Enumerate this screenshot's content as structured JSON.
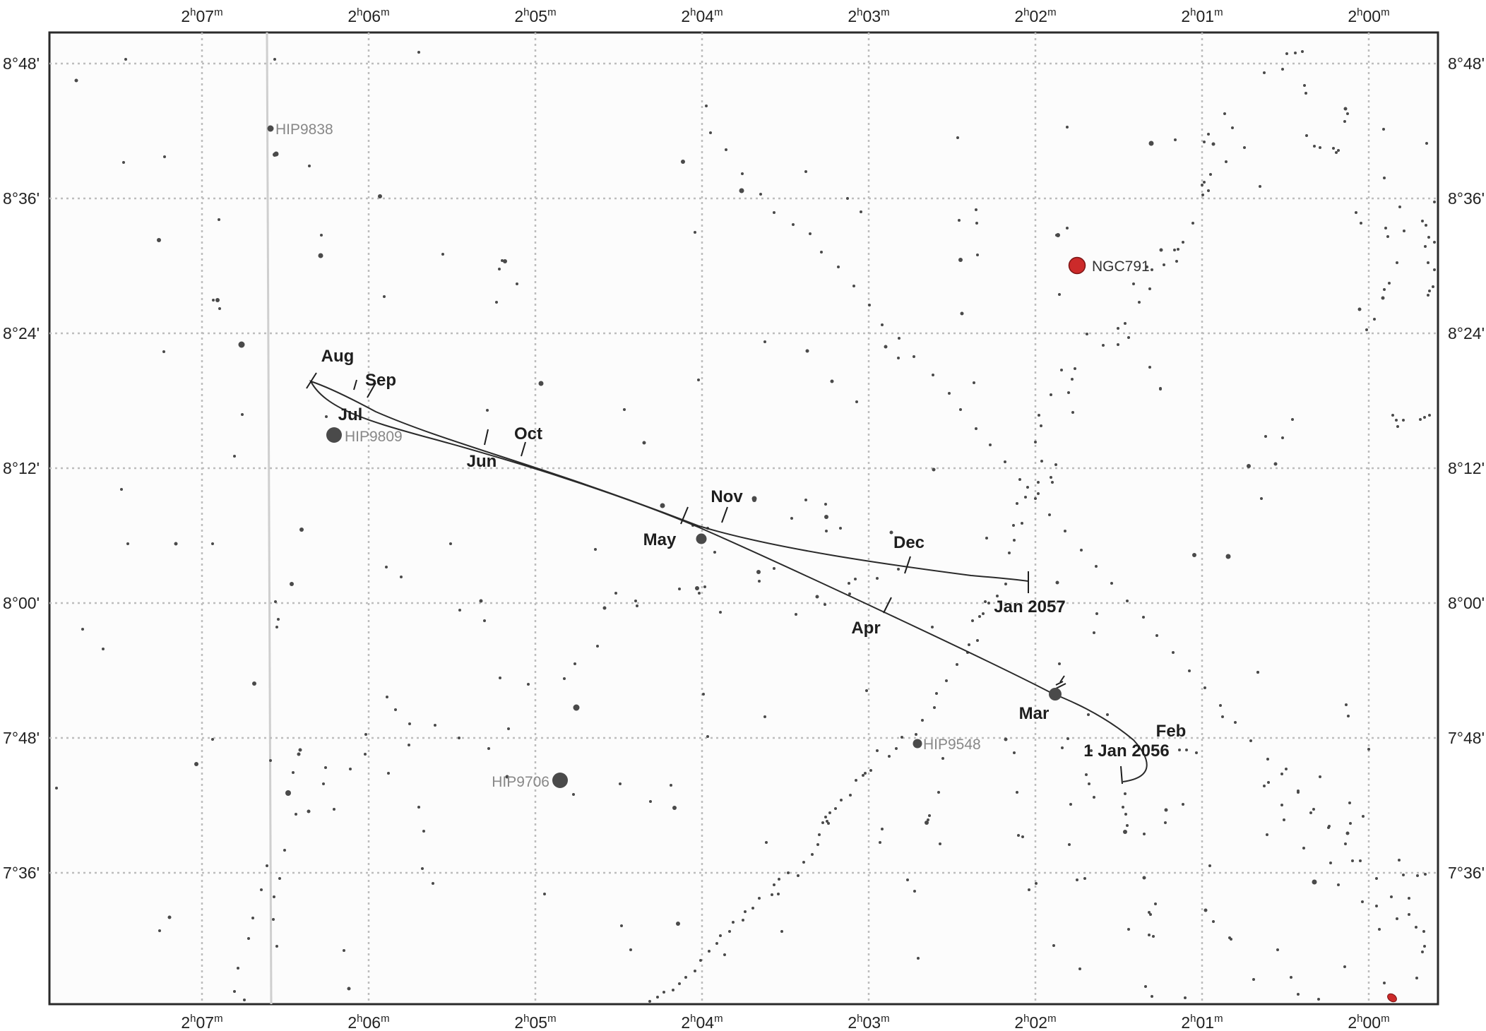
{
  "chart_data": {
    "type": "scatter",
    "ra_ticks": [
      "2h07m",
      "2h06m",
      "2h05m",
      "2h04m",
      "2h03m",
      "2h02m",
      "2h01m",
      "2h00m"
    ],
    "dec_ticks": [
      "8°48'",
      "8°36'",
      "8°24'",
      "8°12'",
      "8°00'",
      "7°48'",
      "7°36'"
    ],
    "path_labels": [
      "1 Jan 2056",
      "Feb",
      "Mar",
      "Apr",
      "May",
      "Jun",
      "Jul",
      "Aug",
      "Sep",
      "Oct",
      "Nov",
      "Dec",
      "Jan 2057"
    ],
    "labeled_objects": [
      {
        "name": "HIP9838",
        "ra": "2h06m22s",
        "dec": "8°43.6'",
        "color": "#888888"
      },
      {
        "name": "HIP9809",
        "ra": "2h06m07s",
        "dec": "8°14.7'",
        "color": "#888888"
      },
      {
        "name": "HIP9706",
        "ra": "2h04m52s",
        "dec": "7°43.7'",
        "color": "#888888"
      },
      {
        "name": "HIP9548",
        "ra": "2h02m42s",
        "dec": "7°47.3'",
        "color": "#888888"
      },
      {
        "name": "NGC791",
        "ra": "2h01m46s",
        "dec": "8°29.6'",
        "color": "#cc2a2a"
      }
    ],
    "grid": true
  }
}
